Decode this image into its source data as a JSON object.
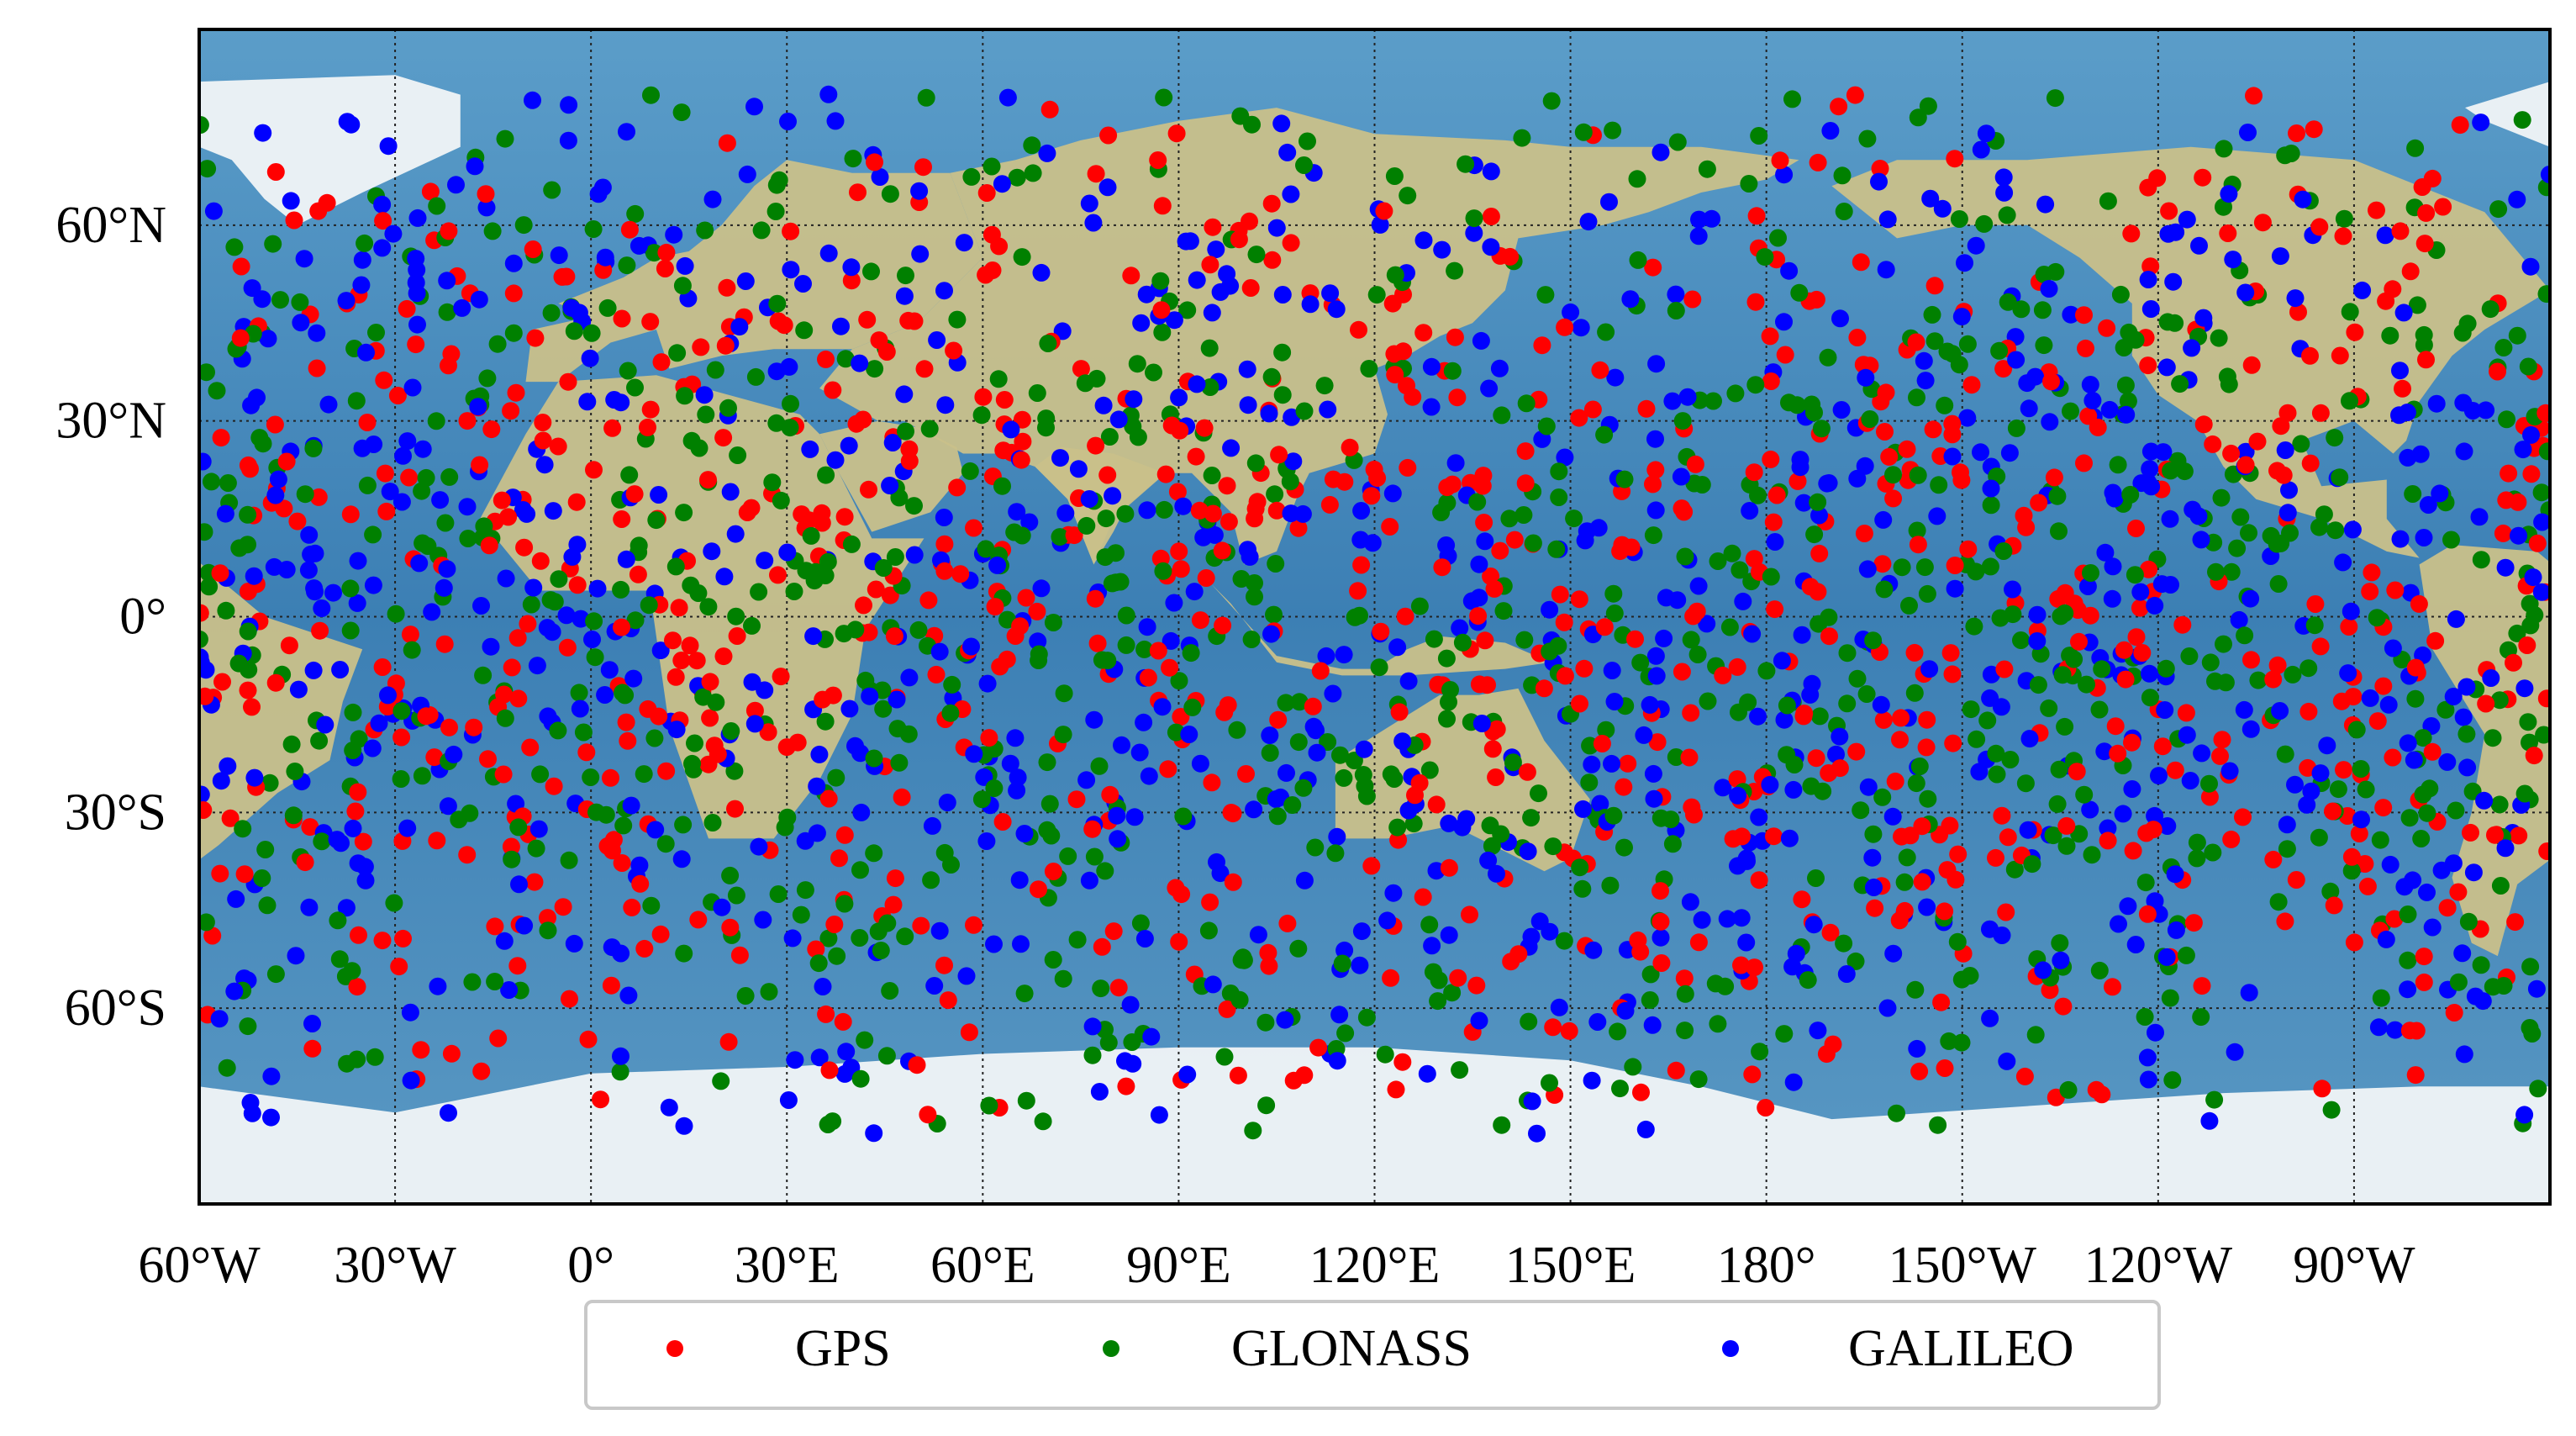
{
  "map": {
    "projection": "equirectangular",
    "central_longitude": 120,
    "lon_range": [
      -60,
      300
    ],
    "lat_range": [
      -90,
      90
    ],
    "gridlines": true,
    "gridline_style": "dotted",
    "background": "satellite-imagery"
  },
  "axes": {
    "x_ticks": [
      {
        "lon": -60,
        "label": "60°W"
      },
      {
        "lon": -30,
        "label": "30°W"
      },
      {
        "lon": 0,
        "label": "0°"
      },
      {
        "lon": 30,
        "label": "30°E"
      },
      {
        "lon": 60,
        "label": "60°E"
      },
      {
        "lon": 90,
        "label": "90°E"
      },
      {
        "lon": 120,
        "label": "120°E"
      },
      {
        "lon": 150,
        "label": "150°E"
      },
      {
        "lon": 180,
        "label": "180°"
      },
      {
        "lon": 210,
        "label": "150°W"
      },
      {
        "lon": 240,
        "label": "120°W"
      },
      {
        "lon": 270,
        "label": "90°W"
      }
    ],
    "y_ticks": [
      {
        "lat": 60,
        "label": "60°N"
      },
      {
        "lat": 30,
        "label": "30°N"
      },
      {
        "lat": 0,
        "label": "0°"
      },
      {
        "lat": -30,
        "label": "30°S"
      },
      {
        "lat": -60,
        "label": "60°S"
      }
    ]
  },
  "legend": {
    "placement": "bottom-center",
    "entries": [
      {
        "name": "GPS",
        "color": "#ff0000"
      },
      {
        "name": "GLONASS",
        "color": "#008000"
      },
      {
        "name": "GALILEO",
        "color": "#0000ff"
      }
    ]
  },
  "colors": {
    "ocean": "#3f86b8",
    "land": "#c9c08a",
    "ice": "#f1f4f7",
    "frame": "#000000"
  }
}
